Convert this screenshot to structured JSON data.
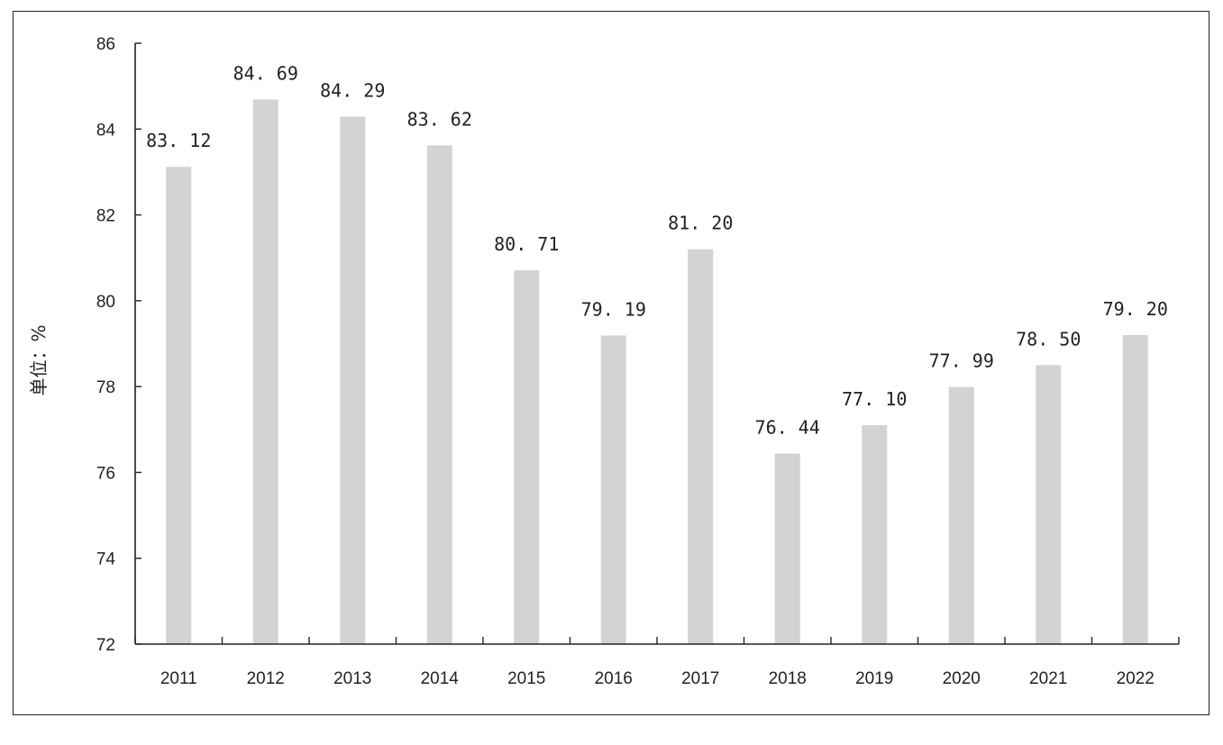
{
  "chart_data": {
    "type": "bar",
    "title": "",
    "xlabel": "",
    "ylabel": "单位：%",
    "categories": [
      "2011",
      "2012",
      "2013",
      "2014",
      "2015",
      "2016",
      "2017",
      "2018",
      "2019",
      "2020",
      "2021",
      "2022"
    ],
    "values": [
      83.12,
      84.69,
      84.29,
      83.62,
      80.71,
      79.19,
      81.2,
      76.44,
      77.1,
      77.99,
      78.5,
      79.2
    ],
    "data_labels": [
      "83. 12",
      "84. 69",
      "84. 29",
      "83. 62",
      "80. 71",
      "79. 19",
      "81. 20",
      "76. 44",
      "77. 10",
      "77. 99",
      "78. 50",
      "79. 20"
    ],
    "ylim": [
      72,
      86
    ],
    "yticks": [
      72,
      74,
      76,
      78,
      80,
      82,
      84,
      86
    ],
    "ytick_labels": [
      "72",
      "74",
      "76",
      "78",
      "80",
      "82",
      "84",
      "86"
    ],
    "grid": false,
    "legend": "none",
    "colors": {
      "bar": "#d3d3d3",
      "axis": "#222222",
      "text": "#222222",
      "frame": "#222222"
    }
  }
}
